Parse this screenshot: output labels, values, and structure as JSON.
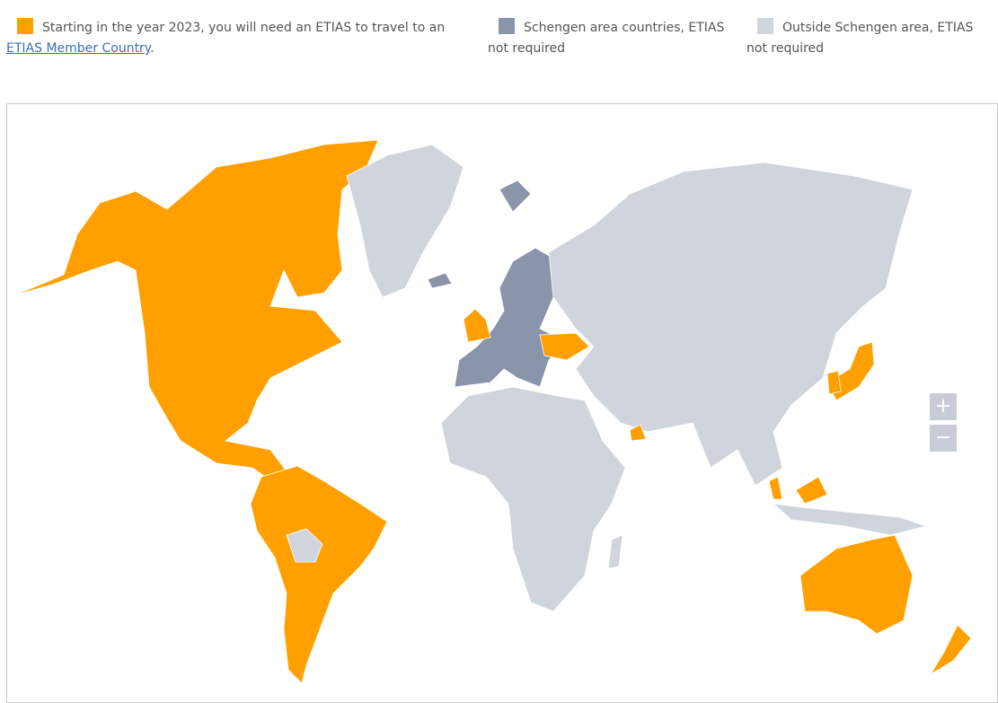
{
  "legend": {
    "items": [
      {
        "text": "Starting in the year 2023, you will need an ETIAS to travel to an ",
        "link": "ETIAS Member Country",
        "suffix": ".",
        "color": "#ffa000"
      },
      {
        "text": "Schengen area countries, ETIAS not required",
        "color": "#8a94aa"
      },
      {
        "text": "Outside Schengen area, ETIAS not required",
        "color": "#d0d4dc"
      }
    ]
  },
  "zoom": {
    "in": "+",
    "out": "−"
  }
}
